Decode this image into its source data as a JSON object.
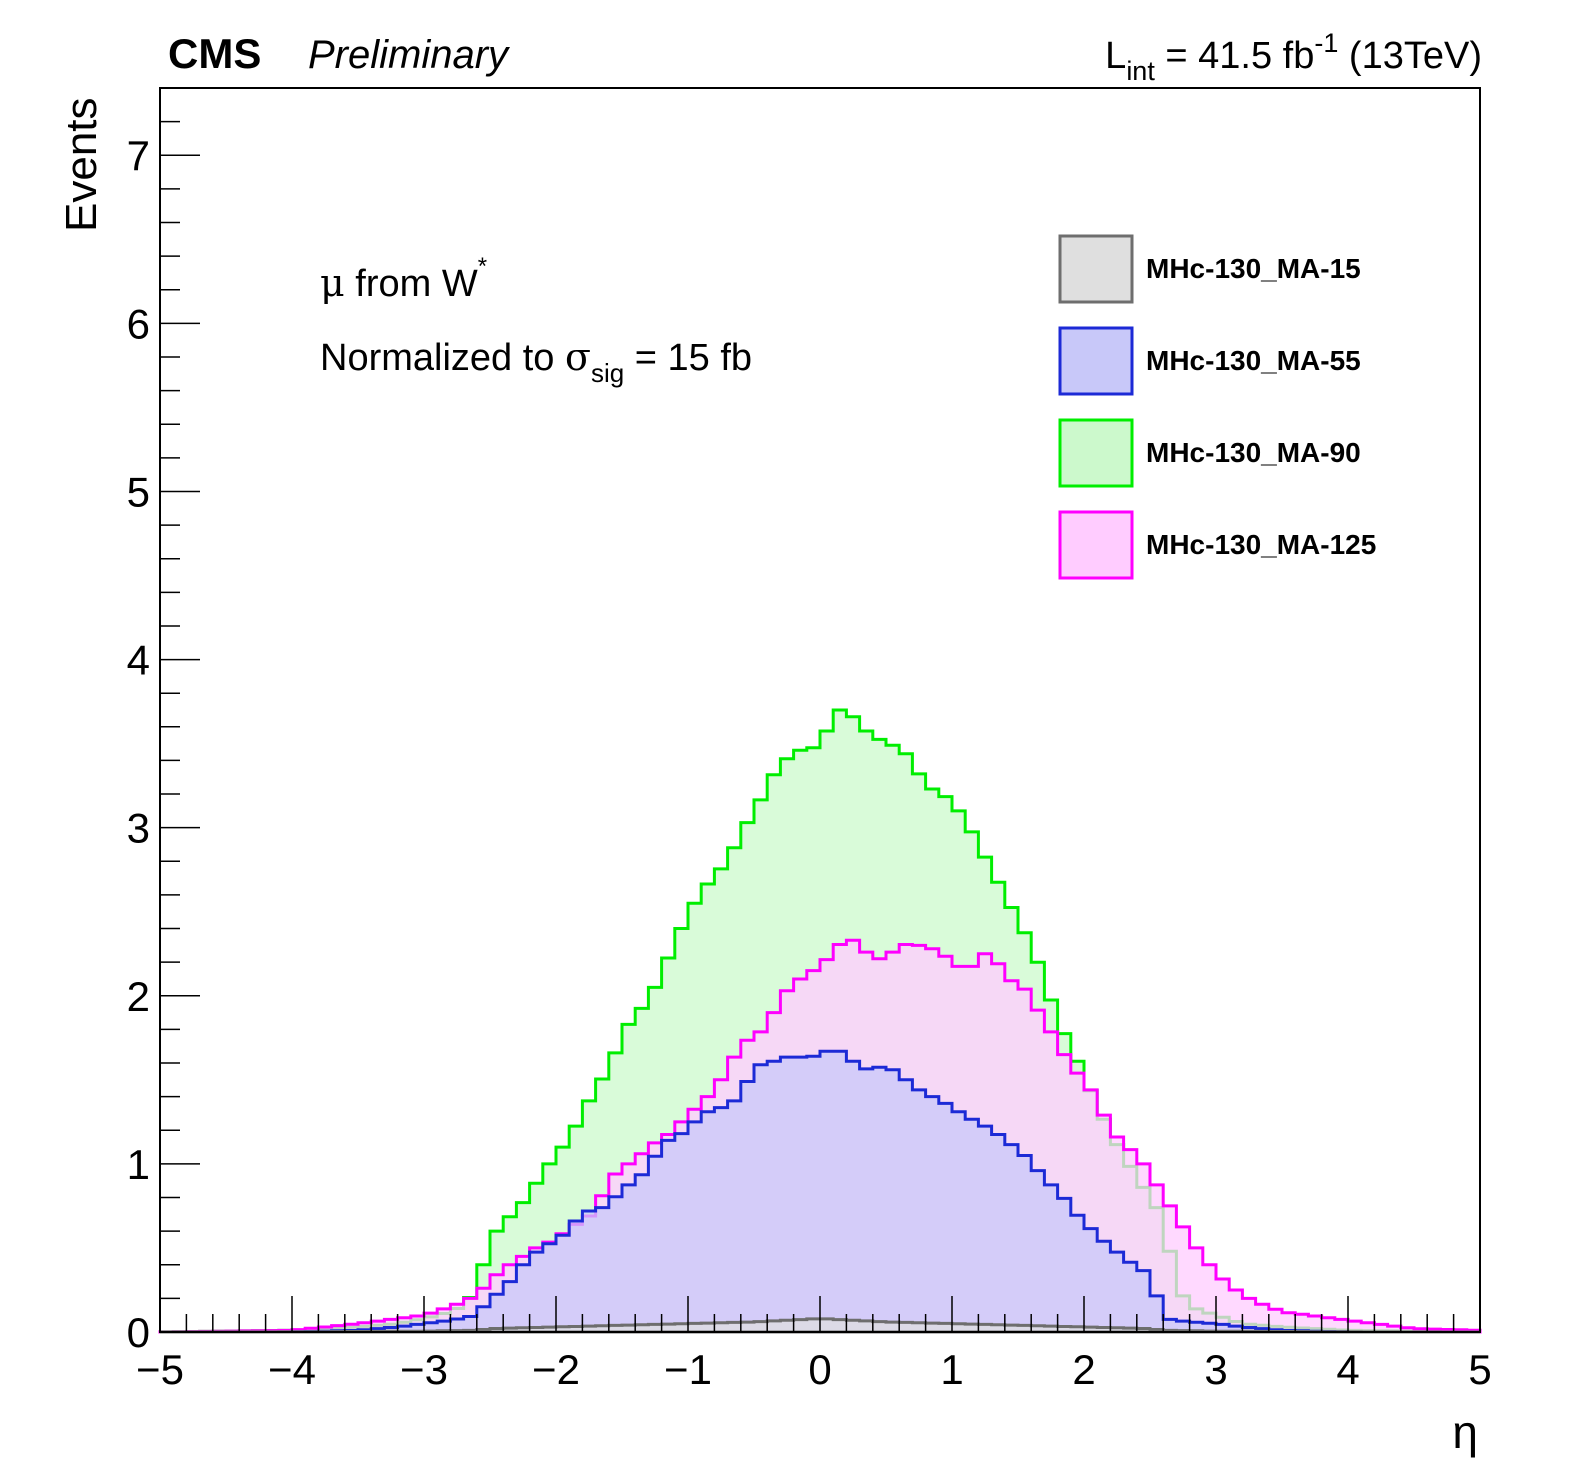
{
  "header": {
    "experiment": "CMS",
    "status": "Preliminary",
    "lumi_prefix": "L",
    "lumi_sub": "int",
    "lumi_value": " = 41.5 fb",
    "lumi_sup": "-1",
    "energy": " (13TeV)"
  },
  "annotations": {
    "line1_greek": "μ",
    "line1_text": " from W",
    "line1_sup": "*",
    "line2_text": "Normalized to ",
    "line2_greek": "σ",
    "line2_sub": "sig",
    "line2_tail": " = 15 fb"
  },
  "chart_data": {
    "type": "area",
    "xlabel": "η",
    "ylabel": "Events",
    "xlim": [
      -5,
      5
    ],
    "ylim": [
      0,
      7.4
    ],
    "x_ticks": [
      "−5",
      "−4",
      "−3",
      "−2",
      "−1",
      "0",
      "1",
      "2",
      "3",
      "4",
      "5"
    ],
    "y_ticks": [
      "0",
      "1",
      "2",
      "3",
      "4",
      "5",
      "6",
      "7"
    ],
    "bin_width": 0.1,
    "legend_position": "top-right",
    "series": [
      {
        "name": "MHc-130_MA-15",
        "line_color": "#6e6e6e",
        "fill_color": "#dfdfdf",
        "points": [
          [
            -5,
            0
          ],
          [
            -4,
            0.001
          ],
          [
            -3,
            0.005
          ],
          [
            -2.6,
            0.01
          ],
          [
            -2.5,
            0.02
          ],
          [
            -2,
            0.03
          ],
          [
            -1.5,
            0.04
          ],
          [
            -1,
            0.05
          ],
          [
            -0.5,
            0.06
          ],
          [
            0,
            0.08
          ],
          [
            0.5,
            0.06
          ],
          [
            1,
            0.05
          ],
          [
            1.5,
            0.04
          ],
          [
            2,
            0.03
          ],
          [
            2.5,
            0.02
          ],
          [
            2.6,
            0.01
          ],
          [
            3,
            0.005
          ],
          [
            4,
            0.001
          ],
          [
            5,
            0
          ]
        ]
      },
      {
        "name": "MHc-130_MA-55",
        "line_color": "#1c2ad6",
        "fill_color": "#c8c8f9",
        "points": [
          [
            -5,
            0
          ],
          [
            -4,
            0
          ],
          [
            -3.5,
            0.01
          ],
          [
            -3.2,
            0.03
          ],
          [
            -3,
            0.05
          ],
          [
            -2.8,
            0.07
          ],
          [
            -2.6,
            0.1
          ],
          [
            -2.5,
            0.2
          ],
          [
            -2.4,
            0.25
          ],
          [
            -2.3,
            0.35
          ],
          [
            -2.2,
            0.45
          ],
          [
            -2.1,
            0.5
          ],
          [
            -2,
            0.55
          ],
          [
            -1.9,
            0.6
          ],
          [
            -1.8,
            0.72
          ],
          [
            -1.7,
            0.72
          ],
          [
            -1.6,
            0.76
          ],
          [
            -1.5,
            0.85
          ],
          [
            -1.4,
            0.9
          ],
          [
            -1.3,
            0.97
          ],
          [
            -1.2,
            1.12
          ],
          [
            -1.1,
            1.16
          ],
          [
            -1,
            1.2
          ],
          [
            -0.9,
            1.3
          ],
          [
            -0.8,
            1.32
          ],
          [
            -0.7,
            1.35
          ],
          [
            -0.6,
            1.4
          ],
          [
            -0.5,
            1.58
          ],
          [
            -0.4,
            1.6
          ],
          [
            -0.3,
            1.62
          ],
          [
            -0.2,
            1.65
          ],
          [
            -0.1,
            1.62
          ],
          [
            0,
            1.66
          ],
          [
            0.1,
            1.68
          ],
          [
            0.2,
            1.66
          ],
          [
            0.3,
            1.56
          ],
          [
            0.4,
            1.57
          ],
          [
            0.5,
            1.58
          ],
          [
            0.6,
            1.54
          ],
          [
            0.7,
            1.46
          ],
          [
            0.8,
            1.42
          ],
          [
            0.9,
            1.38
          ],
          [
            1,
            1.34
          ],
          [
            1.1,
            1.28
          ],
          [
            1.2,
            1.25
          ],
          [
            1.3,
            1.2
          ],
          [
            1.4,
            1.15
          ],
          [
            1.5,
            1.08
          ],
          [
            1.6,
            1.02
          ],
          [
            1.7,
            0.9
          ],
          [
            1.8,
            0.85
          ],
          [
            1.9,
            0.74
          ],
          [
            2,
            0.65
          ],
          [
            2.1,
            0.58
          ],
          [
            2.2,
            0.5
          ],
          [
            2.3,
            0.45
          ],
          [
            2.4,
            0.38
          ],
          [
            2.5,
            0.35
          ],
          [
            2.6,
            0.08
          ],
          [
            2.8,
            0.06
          ],
          [
            3,
            0.05
          ],
          [
            3.2,
            0.03
          ],
          [
            3.5,
            0.01
          ],
          [
            4,
            0
          ],
          [
            5,
            0
          ]
        ]
      },
      {
        "name": "MHc-130_MA-90",
        "line_color": "#00ee00",
        "fill_color": "#ccf9cc",
        "points": [
          [
            -5,
            0
          ],
          [
            -4,
            0.01
          ],
          [
            -3.5,
            0.03
          ],
          [
            -3.2,
            0.05
          ],
          [
            -3,
            0.08
          ],
          [
            -2.8,
            0.12
          ],
          [
            -2.7,
            0.16
          ],
          [
            -2.6,
            0.25
          ],
          [
            -2.5,
            0.55
          ],
          [
            -2.4,
            0.65
          ],
          [
            -2.3,
            0.72
          ],
          [
            -2.2,
            0.82
          ],
          [
            -2.1,
            0.95
          ],
          [
            -2,
            1.05
          ],
          [
            -1.9,
            1.15
          ],
          [
            -1.8,
            1.3
          ],
          [
            -1.7,
            1.45
          ],
          [
            -1.6,
            1.56
          ],
          [
            -1.5,
            1.76
          ],
          [
            -1.4,
            1.9
          ],
          [
            -1.3,
            1.95
          ],
          [
            -1.2,
            2.15
          ],
          [
            -1.1,
            2.3
          ],
          [
            -1,
            2.5
          ],
          [
            -0.9,
            2.6
          ],
          [
            -0.8,
            2.73
          ],
          [
            -0.7,
            2.78
          ],
          [
            -0.6,
            2.98
          ],
          [
            -0.5,
            3.08
          ],
          [
            -0.4,
            3.25
          ],
          [
            -0.3,
            3.38
          ],
          [
            -0.2,
            3.44
          ],
          [
            -0.1,
            3.48
          ],
          [
            0,
            3.47
          ],
          [
            0.1,
            3.68
          ],
          [
            0.2,
            3.72
          ],
          [
            0.3,
            3.6
          ],
          [
            0.4,
            3.55
          ],
          [
            0.5,
            3.5
          ],
          [
            0.6,
            3.48
          ],
          [
            0.7,
            3.4
          ],
          [
            0.8,
            3.24
          ],
          [
            0.9,
            3.22
          ],
          [
            1,
            3.15
          ],
          [
            1.1,
            3.05
          ],
          [
            1.2,
            2.9
          ],
          [
            1.3,
            2.75
          ],
          [
            1.4,
            2.6
          ],
          [
            1.5,
            2.45
          ],
          [
            1.6,
            2.3
          ],
          [
            1.7,
            2.1
          ],
          [
            1.8,
            1.85
          ],
          [
            1.9,
            1.7
          ],
          [
            2,
            1.52
          ],
          [
            2.1,
            1.35
          ],
          [
            2.2,
            1.18
          ],
          [
            2.3,
            1.05
          ],
          [
            2.4,
            0.92
          ],
          [
            2.5,
            0.8
          ],
          [
            2.6,
            0.68
          ],
          [
            2.7,
            0.28
          ],
          [
            2.8,
            0.15
          ],
          [
            3,
            0.1
          ],
          [
            3.2,
            0.05
          ],
          [
            3.5,
            0.03
          ],
          [
            4,
            0.01
          ],
          [
            5,
            0
          ]
        ]
      },
      {
        "name": "MHc-130_MA-125",
        "line_color": "#ff00ff",
        "fill_color": "#ffccff",
        "points": [
          [
            -5,
            0
          ],
          [
            -4,
            0.01
          ],
          [
            -3.5,
            0.05
          ],
          [
            -3.2,
            0.08
          ],
          [
            -3,
            0.1
          ],
          [
            -2.8,
            0.15
          ],
          [
            -2.7,
            0.18
          ],
          [
            -2.6,
            0.22
          ],
          [
            -2.5,
            0.3
          ],
          [
            -2.4,
            0.38
          ],
          [
            -2.3,
            0.42
          ],
          [
            -2.2,
            0.48
          ],
          [
            -2.1,
            0.52
          ],
          [
            -2,
            0.55
          ],
          [
            -1.9,
            0.62
          ],
          [
            -1.8,
            0.66
          ],
          [
            -1.7,
            0.72
          ],
          [
            -1.6,
            0.9
          ],
          [
            -1.5,
            0.98
          ],
          [
            -1.4,
            1.02
          ],
          [
            -1.3,
            1.1
          ],
          [
            -1.2,
            1.15
          ],
          [
            -1.1,
            1.2
          ],
          [
            -1,
            1.3
          ],
          [
            -0.9,
            1.35
          ],
          [
            -0.8,
            1.45
          ],
          [
            -0.7,
            1.55
          ],
          [
            -0.6,
            1.72
          ],
          [
            -0.5,
            1.75
          ],
          [
            -0.4,
            1.82
          ],
          [
            -0.3,
            1.98
          ],
          [
            -0.2,
            2.08
          ],
          [
            -0.1,
            2.12
          ],
          [
            0,
            2.18
          ],
          [
            0.1,
            2.25
          ],
          [
            0.2,
            2.36
          ],
          [
            0.3,
            2.3
          ],
          [
            0.4,
            2.22
          ],
          [
            0.5,
            2.22
          ],
          [
            0.6,
            2.3
          ],
          [
            0.7,
            2.31
          ],
          [
            0.8,
            2.29
          ],
          [
            0.9,
            2.27
          ],
          [
            1,
            2.2
          ],
          [
            1.1,
            2.15
          ],
          [
            1.2,
            2.2
          ],
          [
            1.3,
            2.3
          ],
          [
            1.4,
            2.08
          ],
          [
            1.5,
            2.1
          ],
          [
            1.6,
            1.98
          ],
          [
            1.7,
            1.85
          ],
          [
            1.8,
            1.72
          ],
          [
            1.9,
            1.58
          ],
          [
            2,
            1.5
          ],
          [
            2.1,
            1.38
          ],
          [
            2.2,
            1.2
          ],
          [
            2.3,
            1.12
          ],
          [
            2.4,
            1.05
          ],
          [
            2.5,
            0.95
          ],
          [
            2.6,
            0.8
          ],
          [
            2.7,
            0.7
          ],
          [
            2.8,
            0.55
          ],
          [
            2.9,
            0.45
          ],
          [
            3,
            0.35
          ],
          [
            3.1,
            0.28
          ],
          [
            3.2,
            0.22
          ],
          [
            3.3,
            0.18
          ],
          [
            3.4,
            0.15
          ],
          [
            3.5,
            0.12
          ],
          [
            3.7,
            0.1
          ],
          [
            4,
            0.07
          ],
          [
            4.3,
            0.04
          ],
          [
            4.5,
            0.02
          ],
          [
            5,
            0.01
          ]
        ]
      }
    ]
  }
}
